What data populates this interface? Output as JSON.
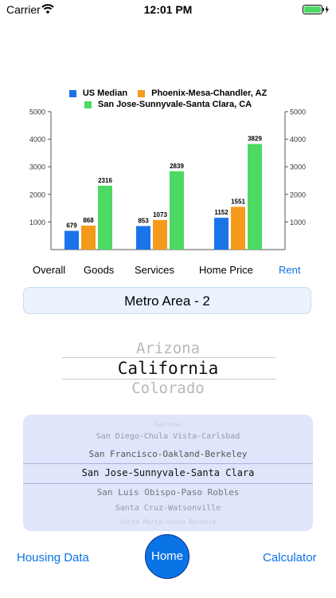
{
  "status_bar": {
    "carrier": "Carrier",
    "time": "12:01 PM"
  },
  "chart_data": {
    "type": "bar",
    "categories": [
      "Goods",
      "Services",
      "Home Price"
    ],
    "series": [
      {
        "name": "US Median",
        "color": "#1a73e8",
        "values": [
          679,
          853,
          1152
        ]
      },
      {
        "name": "Phoenix-Mesa-Chandler, AZ",
        "color": "#f59a1b",
        "values": [
          868,
          1073,
          1551
        ]
      },
      {
        "name": "San Jose-Sunnyvale-Santa Clara, CA",
        "color": "#4cd964",
        "values": [
          2316,
          2839,
          3829
        ]
      }
    ],
    "ylim": [
      0,
      5000
    ],
    "yticks": [
      1000,
      2000,
      3000,
      4000,
      5000
    ],
    "grid": false,
    "legend_position": "top"
  },
  "tabs": [
    {
      "label": "Overall",
      "selected": false
    },
    {
      "label": "Goods",
      "selected": false
    },
    {
      "label": "Services",
      "selected": false
    },
    {
      "label": "Home Price",
      "selected": false
    },
    {
      "label": "Rent",
      "selected": true
    }
  ],
  "metro_label": "Metro Area - 2",
  "state_picker": {
    "above": "Arizona",
    "selected": "California",
    "below": "Colorado"
  },
  "metro_picker": {
    "items": [
      "Salinas",
      "San Diego-Chula Vista-Carlsbad",
      "San Francisco-Oakland-Berkeley",
      "San Jose-Sunnyvale-Santa Clara",
      "San Luis Obispo-Paso Robles",
      "Santa Cruz-Watsonville",
      "Santa Maria-Santa Barbara"
    ],
    "selected_index": 3
  },
  "nav": {
    "housing": "Housing Data",
    "home": "Home",
    "calculator": "Calculator"
  },
  "colors": {
    "accent": "#0a73e6"
  }
}
